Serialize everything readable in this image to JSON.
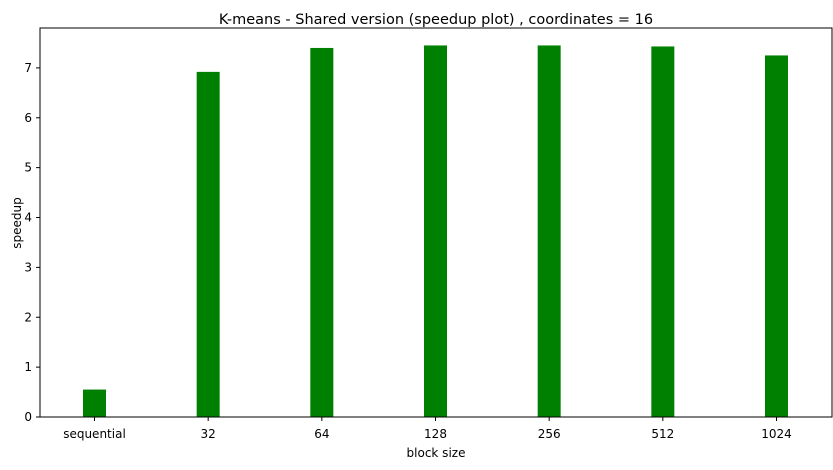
{
  "chart_data": {
    "type": "bar",
    "title": "K-means - Shared version (speedup plot) , coordinates = 16",
    "xlabel": "block size",
    "ylabel": "speedup",
    "categories": [
      "sequential",
      "32",
      "64",
      "128",
      "256",
      "512",
      "1024"
    ],
    "values": [
      0.55,
      6.92,
      7.4,
      7.45,
      7.45,
      7.43,
      7.25
    ],
    "yticks": [
      "0",
      "1",
      "2",
      "3",
      "4",
      "5",
      "6",
      "7"
    ],
    "ylim": [
      0,
      7.8
    ],
    "bar_color": "#008000",
    "grid": false,
    "legend": "none"
  }
}
